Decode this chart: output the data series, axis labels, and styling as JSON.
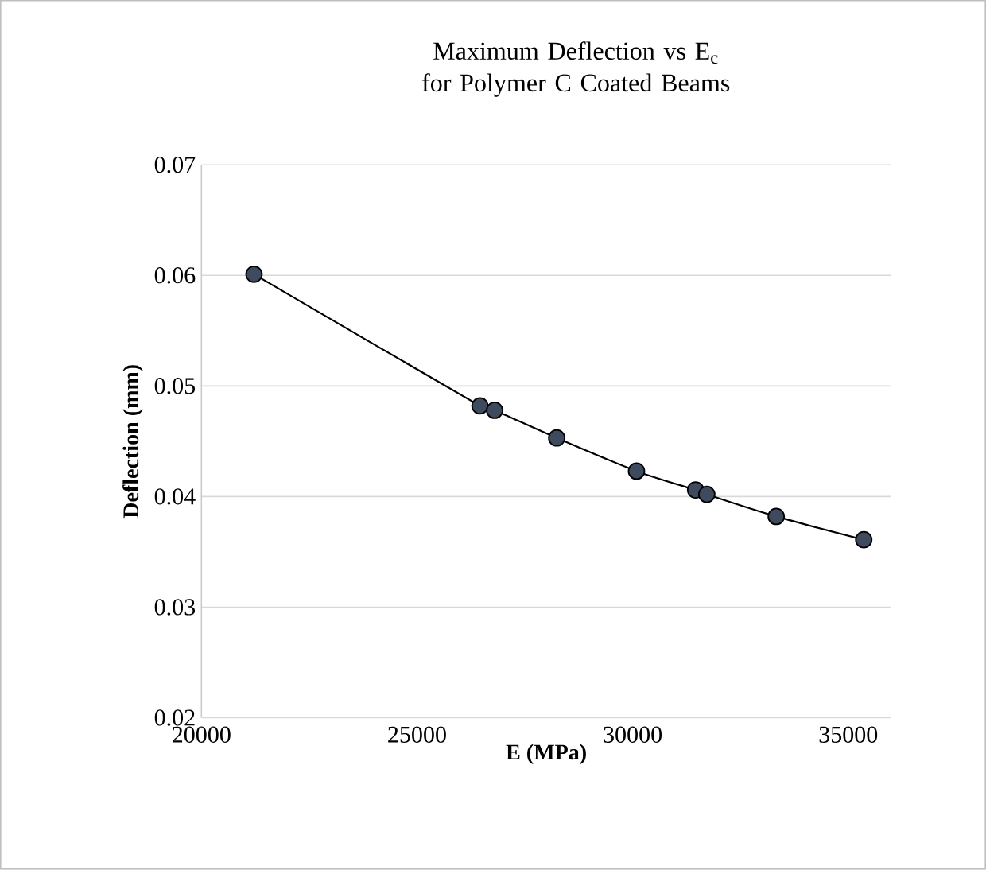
{
  "chart_data": {
    "type": "line",
    "title": "Maximum Deflection vs E$_{c}$ for Polymer C Coated Beams",
    "xlabel": "E (MPa)",
    "ylabel": "Deflection (mm)",
    "x": [
      21220,
      26460,
      26800,
      28240,
      30090,
      31460,
      31720,
      33330,
      35360
    ],
    "series": [
      {
        "color": "#3e4b5e",
        "values": [
          0.0601,
          0.0482,
          0.0478,
          0.0453,
          0.0423,
          0.0406,
          0.0402,
          0.0382,
          0.0361
        ]
      }
    ],
    "xlim": [
      20000,
      36000
    ],
    "xticks": [
      20000,
      25000,
      30000,
      35000
    ],
    "ylim": [
      0.02,
      0.07
    ],
    "yticks": [
      0.02,
      0.03,
      0.04,
      0.05,
      0.06,
      0.07
    ],
    "grid": "y",
    "marker": "circle",
    "line_style": "solid"
  }
}
